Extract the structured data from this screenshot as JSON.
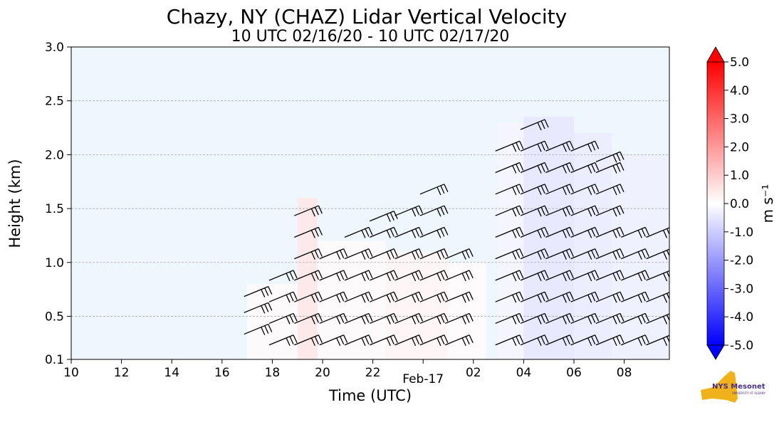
{
  "chart_data": {
    "type": "heatmap",
    "title": "Chazy, NY (CHAZ) Lidar Vertical Velocity",
    "subtitle": "10 UTC 02/16/20 - 10 UTC 02/17/20",
    "xlabel": "Time (UTC)",
    "ylabel": "Height (km)",
    "x_ticks": [
      "10",
      "12",
      "14",
      "16",
      "18",
      "20",
      "22",
      "Feb-17",
      "02",
      "04",
      "06",
      "08"
    ],
    "x_range_hours": [
      10,
      33.8
    ],
    "y_ticks": [
      "0.1",
      "0.5",
      "1.0",
      "1.5",
      "2.0",
      "2.5",
      "3.0"
    ],
    "y_tick_values": [
      0.1,
      0.5,
      1.0,
      1.5,
      2.0,
      2.5,
      3.0
    ],
    "ylim": [
      0.1,
      3.0
    ],
    "grid": "horizontal dashed",
    "colorbar": {
      "label": "m s⁻¹",
      "ticks": [
        "5.0",
        "4.0",
        "3.0",
        "2.0",
        "1.0",
        "0.0",
        "-1.0",
        "-2.0",
        "-3.0",
        "-4.0",
        "-5.0"
      ],
      "range": [
        -5.0,
        5.0
      ],
      "colormap": "blue-white-red",
      "low_color": "#0000ff",
      "mid_color": "#ffffff",
      "high_color": "#ff0000"
    },
    "velocity_field": [
      {
        "t": [
          17.0,
          19.0
        ],
        "h": [
          0.1,
          0.8
        ],
        "w": 0.1
      },
      {
        "t": [
          19.0,
          19.8
        ],
        "h": [
          0.1,
          1.6
        ],
        "w": 0.5
      },
      {
        "t": [
          19.8,
          22.5
        ],
        "h": [
          0.1,
          1.2
        ],
        "w": 0.1
      },
      {
        "t": [
          22.5,
          25.0
        ],
        "h": [
          0.1,
          1.1
        ],
        "w": 0.2
      },
      {
        "t": [
          25.0,
          26.5
        ],
        "h": [
          0.1,
          1.0
        ],
        "w": 0.05
      },
      {
        "t": [
          27.0,
          28.0
        ],
        "h": [
          0.1,
          2.3
        ],
        "w": -0.2
      },
      {
        "t": [
          28.0,
          30.0
        ],
        "h": [
          0.1,
          2.35
        ],
        "w": -0.5
      },
      {
        "t": [
          30.0,
          31.5
        ],
        "h": [
          0.1,
          2.2
        ],
        "w": -0.4
      },
      {
        "t": [
          31.5,
          33.8
        ],
        "h": [
          0.1,
          2.0
        ],
        "w": -0.3
      }
    ],
    "wind_barbs": [
      {
        "t": 17.5,
        "heights": [
          0.4,
          0.6,
          0.75
        ]
      },
      {
        "t": 18.5,
        "heights": [
          0.3,
          0.5,
          0.7,
          0.9
        ]
      },
      {
        "t": 19.5,
        "heights": [
          0.3,
          0.5,
          0.7,
          0.9,
          1.1,
          1.3,
          1.5
        ]
      },
      {
        "t": 20.5,
        "heights": [
          0.3,
          0.5,
          0.7,
          0.9,
          1.1
        ]
      },
      {
        "t": 21.5,
        "heights": [
          0.3,
          0.5,
          0.7,
          0.9,
          1.1,
          1.3
        ]
      },
      {
        "t": 22.5,
        "heights": [
          0.3,
          0.5,
          0.7,
          0.9,
          1.1,
          1.3,
          1.45
        ]
      },
      {
        "t": 23.5,
        "heights": [
          0.3,
          0.5,
          0.7,
          0.9,
          1.1,
          1.3,
          1.5
        ]
      },
      {
        "t": 24.5,
        "heights": [
          0.3,
          0.5,
          0.7,
          0.9,
          1.1,
          1.3,
          1.5,
          1.7
        ]
      },
      {
        "t": 25.5,
        "heights": [
          0.3,
          0.5,
          0.7,
          0.9,
          1.1
        ]
      },
      {
        "t": 27.5,
        "heights": [
          0.3,
          0.5,
          0.7,
          0.9,
          1.1,
          1.3,
          1.5,
          1.7,
          1.9,
          2.1
        ]
      },
      {
        "t": 28.5,
        "heights": [
          0.3,
          0.5,
          0.7,
          0.9,
          1.1,
          1.3,
          1.5,
          1.7,
          1.9,
          2.1,
          2.3
        ]
      },
      {
        "t": 29.5,
        "heights": [
          0.3,
          0.5,
          0.7,
          0.9,
          1.1,
          1.3,
          1.5,
          1.7,
          1.9,
          2.1
        ]
      },
      {
        "t": 30.5,
        "heights": [
          0.3,
          0.5,
          0.7,
          0.9,
          1.1,
          1.3,
          1.5,
          1.7,
          1.9,
          2.1
        ]
      },
      {
        "t": 31.5,
        "heights": [
          0.3,
          0.5,
          0.7,
          0.9,
          1.1,
          1.3,
          1.5,
          1.7,
          1.9,
          2.0
        ]
      },
      {
        "t": 32.5,
        "heights": [
          0.3,
          0.5,
          0.7,
          0.9,
          1.1,
          1.3
        ]
      },
      {
        "t": 33.5,
        "heights": [
          0.3,
          0.5,
          0.7,
          0.9,
          1.1,
          1.3
        ]
      }
    ]
  },
  "logo": {
    "text": "NYS Mesonet",
    "subtext": "UNIVERSITY AT ALBANY"
  }
}
